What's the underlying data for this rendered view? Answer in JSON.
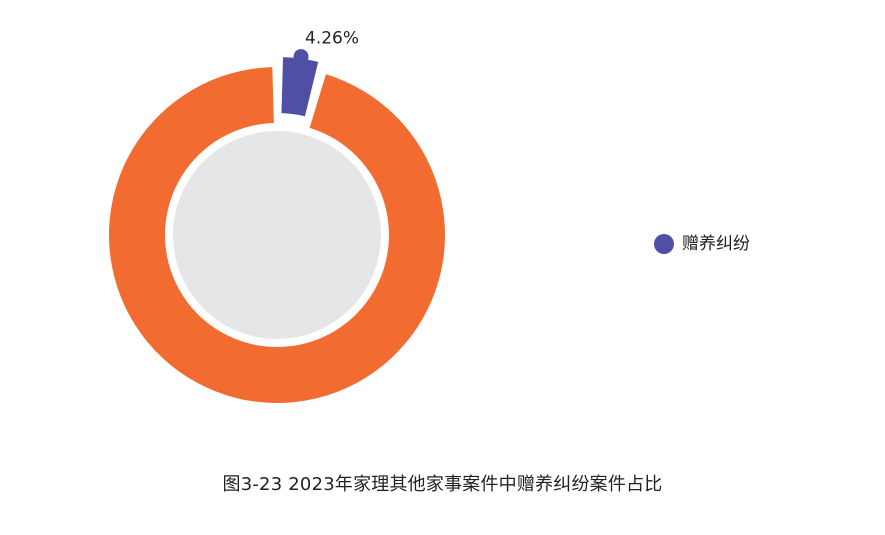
{
  "caption": "图3-23  2023年家理其他家事案件中赠养纠纷案件占比",
  "chart_data": {
    "type": "pie",
    "variant": "donut",
    "title": "图3-23  2023年家理其他家事案件中赠养纠纷案件占比",
    "slices": [
      {
        "label": "赠养纠纷",
        "value": 4.26,
        "value_label": "4.26%",
        "color": "#4e4fa5",
        "exploded": true,
        "show_label": true,
        "in_legend": true
      },
      {
        "label": "",
        "value": 95.74,
        "value_label": "",
        "color": "#f26b30",
        "exploded": false,
        "show_label": false,
        "in_legend": false
      }
    ],
    "hole_fill": "#e5e6e8",
    "legend": {
      "placement": "right",
      "items": [
        {
          "label": "赠养纠纷",
          "color": "#4e4fa5"
        }
      ]
    }
  }
}
